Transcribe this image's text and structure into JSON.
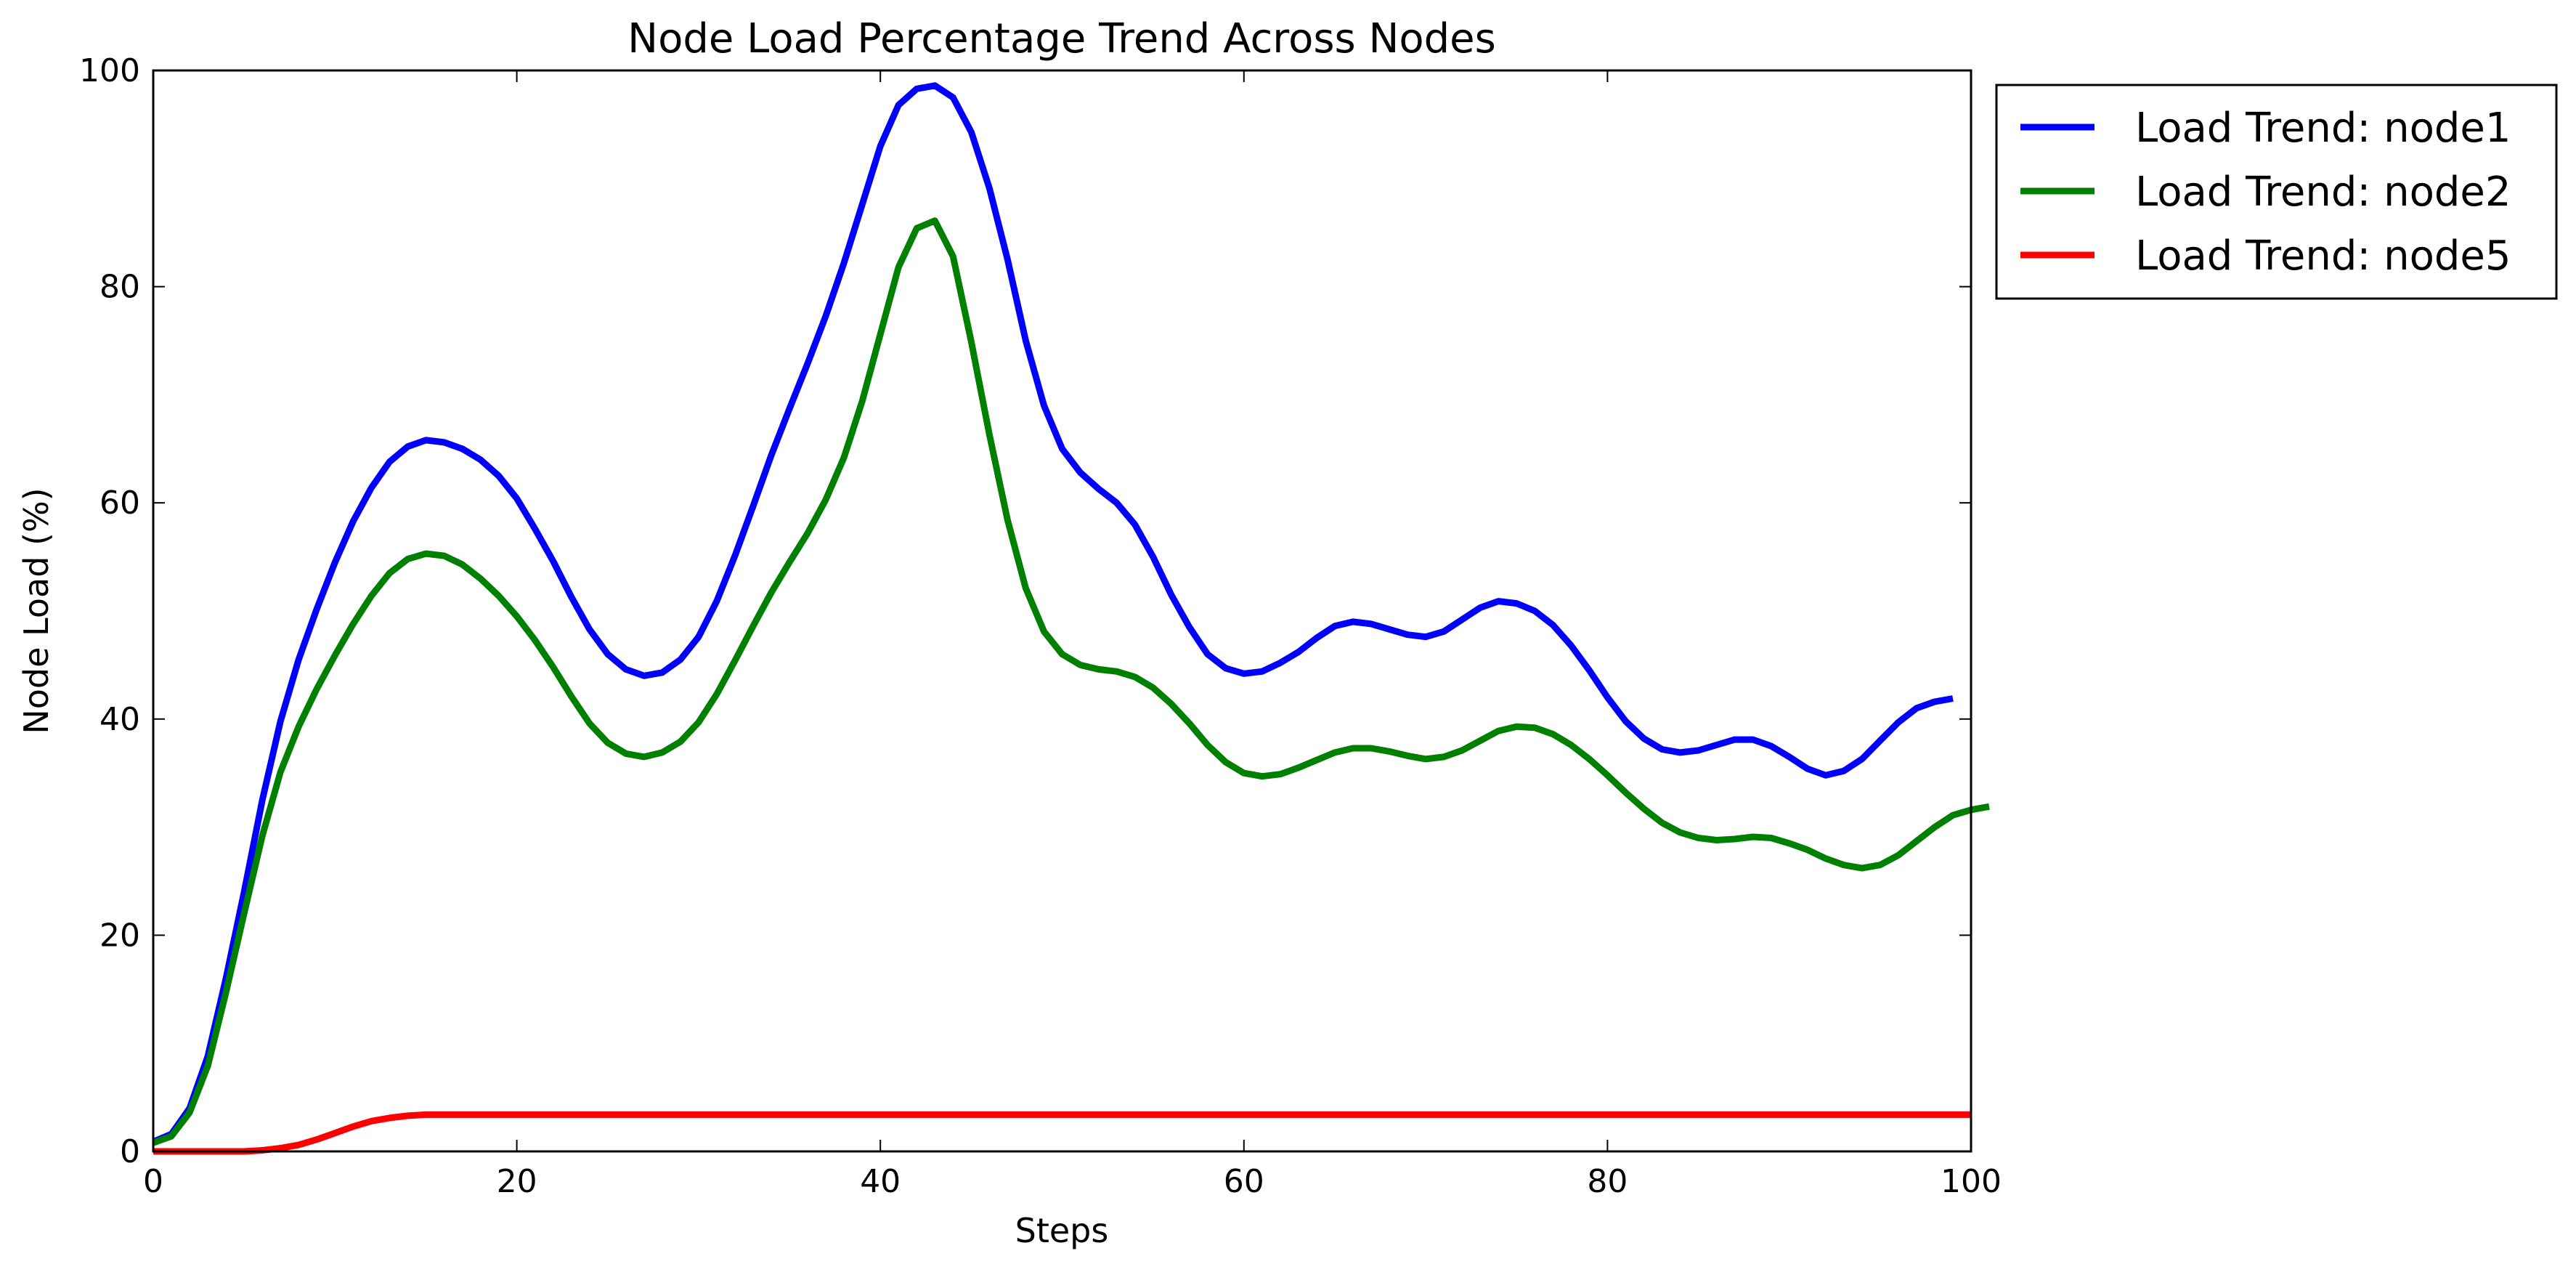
{
  "chart_data": {
    "type": "line",
    "title": "Node Load Percentage Trend Across Nodes",
    "xlabel": "Steps",
    "ylabel": "Node Load (%)",
    "xlim": [
      0,
      100
    ],
    "ylim": [
      0,
      100
    ],
    "xticks": [
      0,
      20,
      40,
      60,
      80,
      100
    ],
    "yticks": [
      0,
      20,
      40,
      60,
      80,
      100
    ],
    "grid": false,
    "legend_position": "outside-top-right",
    "series": [
      {
        "name": "Load Trend: node1",
        "color": "#0000ff",
        "values": [
          0.9,
          1.6,
          4.0,
          8.8,
          16.0,
          24.0,
          32.5,
          39.8,
          45.5,
          50.2,
          54.5,
          58.3,
          61.4,
          63.8,
          65.2,
          65.8,
          65.6,
          65.0,
          64.0,
          62.5,
          60.4,
          57.6,
          54.6,
          51.3,
          48.3,
          46.0,
          44.6,
          44.0,
          44.3,
          45.5,
          47.6,
          50.9,
          55.1,
          59.7,
          64.4,
          68.7,
          72.9,
          77.3,
          82.2,
          87.6,
          93.0,
          96.8,
          98.3,
          98.6,
          97.5,
          94.3,
          89.1,
          82.5,
          75.0,
          69.0,
          65.0,
          62.8,
          61.3,
          60.0,
          58.0,
          55.0,
          51.5,
          48.5,
          46.0,
          44.7,
          44.2,
          44.4,
          45.2,
          46.2,
          47.5,
          48.6,
          49.0,
          48.8,
          48.3,
          47.8,
          47.6,
          48.1,
          49.2,
          50.3,
          50.9,
          50.7,
          50.0,
          48.7,
          46.8,
          44.5,
          42.0,
          39.8,
          38.2,
          37.2,
          36.9,
          37.1,
          37.6,
          38.1,
          38.1,
          37.5,
          36.5,
          35.4,
          34.8,
          35.2,
          36.3,
          38.0,
          39.7,
          41.0,
          41.6,
          41.9
        ]
      },
      {
        "name": "Load Trend: node2",
        "color": "#008000",
        "values": [
          0.8,
          1.4,
          3.6,
          7.9,
          14.7,
          22.0,
          29.2,
          35.1,
          39.3,
          42.8,
          45.9,
          48.8,
          51.4,
          53.5,
          54.8,
          55.3,
          55.1,
          54.3,
          53.0,
          51.4,
          49.5,
          47.3,
          44.8,
          42.1,
          39.6,
          37.8,
          36.8,
          36.5,
          36.9,
          37.9,
          39.7,
          42.3,
          45.4,
          48.6,
          51.7,
          54.5,
          57.2,
          60.3,
          64.2,
          69.4,
          75.6,
          81.8,
          85.4,
          86.1,
          82.8,
          74.9,
          66.3,
          58.4,
          52.1,
          48.1,
          46.0,
          45.0,
          44.6,
          44.4,
          43.9,
          42.9,
          41.4,
          39.6,
          37.6,
          36.0,
          35.0,
          34.7,
          34.9,
          35.5,
          36.2,
          36.9,
          37.3,
          37.3,
          37.0,
          36.6,
          36.3,
          36.5,
          37.1,
          38.0,
          38.9,
          39.3,
          39.2,
          38.6,
          37.6,
          36.3,
          34.8,
          33.2,
          31.7,
          30.4,
          29.5,
          29.0,
          28.8,
          28.9,
          29.1,
          29.0,
          28.5,
          27.9,
          27.1,
          26.5,
          26.2,
          26.5,
          27.4,
          28.7,
          30.0,
          31.1,
          31.6,
          31.9
        ]
      },
      {
        "name": "Load Trend: node5",
        "color": "#ff0000",
        "values": [
          0.0,
          0.0,
          0.0,
          0.0,
          0.0,
          0.0,
          0.1,
          0.3,
          0.6,
          1.1,
          1.7,
          2.3,
          2.8,
          3.1,
          3.3,
          3.4,
          3.4,
          3.4,
          3.4,
          3.4,
          3.4,
          3.4,
          3.4,
          3.4,
          3.4,
          3.4,
          3.4,
          3.4,
          3.4,
          3.4,
          3.4,
          3.4,
          3.4,
          3.4,
          3.4,
          3.4,
          3.4,
          3.4,
          3.4,
          3.4,
          3.4,
          3.4,
          3.4,
          3.4,
          3.4,
          3.4,
          3.4,
          3.4,
          3.4,
          3.4,
          3.4,
          3.4,
          3.4,
          3.4,
          3.4,
          3.4,
          3.4,
          3.4,
          3.4,
          3.4,
          3.4,
          3.4,
          3.4,
          3.4,
          3.4,
          3.4,
          3.4,
          3.4,
          3.4,
          3.4,
          3.4,
          3.4,
          3.4,
          3.4,
          3.4,
          3.4,
          3.4,
          3.4,
          3.4,
          3.4,
          3.4,
          3.4,
          3.4,
          3.4,
          3.4,
          3.4,
          3.4,
          3.4,
          3.4,
          3.4,
          3.4,
          3.4,
          3.4,
          3.4,
          3.4,
          3.4,
          3.4,
          3.4,
          3.4,
          3.4,
          3.4
        ]
      }
    ]
  }
}
